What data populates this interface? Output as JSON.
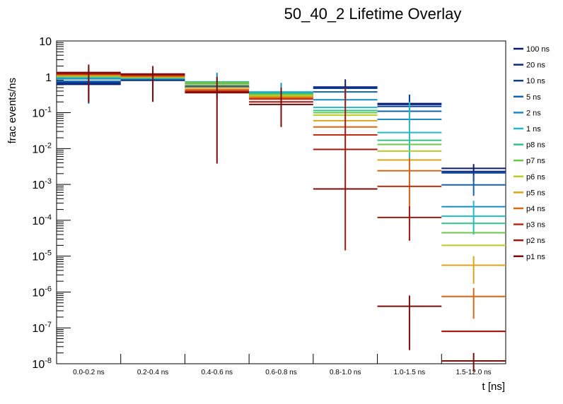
{
  "chart_data": {
    "type": "bar",
    "subtype": "histogram-with-error-bars",
    "title": "50_40_2 Lifetime Overlay",
    "xlabel": "t [ns]",
    "ylabel": "frac events/ns",
    "yscale": "log",
    "ylim": [
      1e-08,
      10
    ],
    "ytick_labels": [
      {
        "value": 10,
        "base": "10",
        "exp": ""
      },
      {
        "value": 1,
        "base": "1",
        "exp": ""
      },
      {
        "value": 0.1,
        "base": "10",
        "exp": "-1"
      },
      {
        "value": 0.01,
        "base": "10",
        "exp": "-2"
      },
      {
        "value": 0.001,
        "base": "10",
        "exp": "-3"
      },
      {
        "value": 0.0001,
        "base": "10",
        "exp": "-4"
      },
      {
        "value": 1e-05,
        "base": "10",
        "exp": "-5"
      },
      {
        "value": 1e-06,
        "base": "10",
        "exp": "-6"
      },
      {
        "value": 1e-07,
        "base": "10",
        "exp": "-7"
      },
      {
        "value": 1e-08,
        "base": "10",
        "exp": "-8"
      }
    ],
    "categories": [
      "0.0-0.2 ns",
      "0.2-0.4 ns",
      "0.4-0.6 ns",
      "0.6-0.8 ns",
      "0.8-1.0 ns",
      "1.0-1.5 ns",
      "1.5-12.0 ns"
    ],
    "grid": false,
    "legend_position": "right",
    "series": [
      {
        "name": "100 ns",
        "color": "#0d1a6b",
        "values": [
          0.62,
          0.8,
          0.5,
          0.3,
          0.52,
          0.18,
          0.0028
        ],
        "errors": [
          null,
          null,
          null,
          null,
          [
            0.25,
            0.85
          ],
          null,
          [
            0.0012,
            0.0037
          ]
        ]
      },
      {
        "name": "20 ns",
        "color": "#0b2a80",
        "values": [
          0.66,
          0.82,
          0.51,
          0.3,
          0.5,
          0.17,
          0.0023
        ],
        "errors": [
          null,
          null,
          null,
          null,
          null,
          null,
          null
        ]
      },
      {
        "name": "10 ns",
        "color": "#0b3f96",
        "values": [
          0.7,
          0.84,
          0.52,
          0.31,
          0.48,
          0.15,
          0.0021
        ],
        "errors": [
          [
            0.18,
            1.8
          ],
          null,
          null,
          null,
          null,
          [
            0.05,
            0.32
          ],
          null
        ]
      },
      {
        "name": "5 ns",
        "color": "#1462ad",
        "values": [
          0.75,
          0.86,
          0.55,
          0.33,
          0.38,
          0.11,
          0.00097
        ],
        "errors": [
          null,
          [
            0.22,
            1.5
          ],
          null,
          null,
          null,
          null,
          [
            0.00048,
            0.0018
          ]
        ]
      },
      {
        "name": "2 ns",
        "color": "#1a8bc2",
        "values": [
          0.88,
          0.9,
          0.62,
          0.36,
          0.23,
          0.065,
          0.00024
        ],
        "errors": [
          null,
          null,
          [
            0.25,
            1.3
          ],
          [
            0.16,
            0.68
          ],
          null,
          null,
          null
        ]
      },
      {
        "name": "1 ns",
        "color": "#22bac8",
        "values": [
          0.95,
          0.92,
          0.7,
          0.38,
          0.14,
          0.028,
          0.00013
        ],
        "errors": [
          null,
          null,
          null,
          null,
          null,
          [
            0.0003,
            0.2
          ],
          [
            4e-05,
            0.00035
          ]
        ]
      },
      {
        "name": "p8 ns",
        "color": "#36c08a",
        "values": [
          1.0,
          0.94,
          0.72,
          0.34,
          0.115,
          0.017,
          8.2e-05
        ],
        "errors": [
          null,
          null,
          null,
          null,
          null,
          null,
          null
        ]
      },
      {
        "name": "p7 ns",
        "color": "#6cc84a",
        "values": [
          1.03,
          0.96,
          0.68,
          0.32,
          0.1,
          0.013,
          4.5e-05
        ],
        "errors": [
          null,
          null,
          null,
          null,
          null,
          null,
          null
        ]
      },
      {
        "name": "p6 ns",
        "color": "#b9cc2a",
        "values": [
          1.06,
          0.98,
          0.6,
          0.3,
          0.085,
          0.0085,
          2e-05
        ],
        "errors": [
          null,
          null,
          null,
          null,
          null,
          null,
          null
        ]
      },
      {
        "name": "p5 ns",
        "color": "#d9a61b",
        "values": [
          1.1,
          1.0,
          0.5,
          0.28,
          0.06,
          0.0048,
          5.6e-06
        ],
        "errors": [
          null,
          null,
          null,
          null,
          null,
          null,
          [
            1.7e-06,
            1e-05
          ]
        ]
      },
      {
        "name": "p4 ns",
        "color": "#d96616",
        "values": [
          1.15,
          1.05,
          0.44,
          0.26,
          0.04,
          0.0024,
          7.5e-07
        ],
        "errors": [
          null,
          null,
          null,
          null,
          null,
          [
            0.00025,
            0.0055
          ],
          [
            1.8e-07,
            1.3e-06
          ]
        ]
      },
      {
        "name": "p3 ns",
        "color": "#c02d12",
        "values": [
          1.2,
          1.1,
          0.4,
          0.24,
          0.024,
          0.00088,
          8e-08
        ],
        "errors": [
          null,
          null,
          null,
          null,
          null,
          null,
          null
        ]
      },
      {
        "name": "p2 ns",
        "color": "#a01810",
        "values": [
          1.25,
          1.15,
          0.38,
          0.2,
          0.0095,
          0.00012,
          8e-08
        ],
        "errors": [
          null,
          null,
          null,
          null,
          [
            1.45e-05,
            0.5
          ],
          [
            2.7e-05,
            0.00025
          ],
          null
        ]
      },
      {
        "name": "p1 ns",
        "color": "#7a0c0c",
        "values": [
          1.32,
          1.2,
          0.36,
          0.17,
          0.00075,
          4e-07,
          1.2e-08
        ],
        "errors": [
          [
            0.2,
            2.2
          ],
          [
            0.2,
            2.0
          ],
          [
            0.0038,
            1.0
          ],
          [
            0.04,
            0.5
          ],
          null,
          [
            2.4e-08,
            8e-07
          ],
          [
            6e-09,
            2e-08
          ]
        ]
      }
    ]
  }
}
